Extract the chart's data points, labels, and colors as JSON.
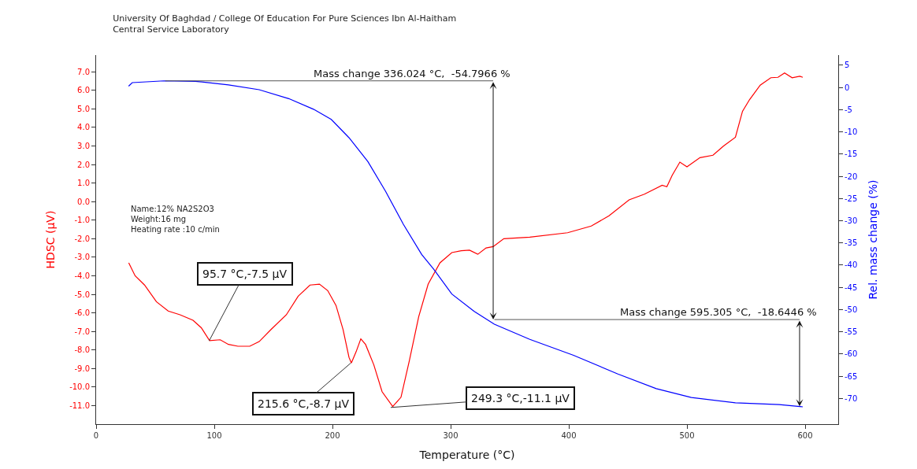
{
  "chart_data": {
    "type": "line",
    "title": "University Of Baghdad / College Of Education For Pure Sciences Ibn Al-Haitham\nCentral Service Laboratory",
    "xlabel": "Temperature (°C)",
    "ylabel": "HDSC (µV)",
    "y2label": "Rel. mass change (%)",
    "xlim": [
      0,
      628
    ],
    "xticks": [
      0,
      100,
      200,
      300,
      400,
      500,
      600
    ],
    "ylim": [
      -12,
      7.9
    ],
    "yticks": [
      {
        "value": 7,
        "label": "7.0"
      },
      {
        "value": 6,
        "label": "6.0"
      },
      {
        "value": 5,
        "label": "5.0"
      },
      {
        "value": 4,
        "label": "4.0"
      },
      {
        "value": 3,
        "label": "3.0"
      },
      {
        "value": 2,
        "label": "2.0"
      },
      {
        "value": 1,
        "label": "1.0"
      },
      {
        "value": 0,
        "label": "0.0"
      },
      {
        "value": -1,
        "label": "-1.0"
      },
      {
        "value": -2,
        "label": "-2.0"
      },
      {
        "value": -3,
        "label": "-3.0"
      },
      {
        "value": -4,
        "label": "-4.0"
      },
      {
        "value": -5,
        "label": "-5.0"
      },
      {
        "value": -6,
        "label": "-6.0"
      },
      {
        "value": -7,
        "label": "-7.0"
      },
      {
        "value": -8,
        "label": "-8.0"
      },
      {
        "value": -9,
        "label": "-9.0"
      },
      {
        "value": -10,
        "label": "-10.0"
      },
      {
        "value": -11,
        "label": "-11.0"
      }
    ],
    "y2lim": [
      -75.8,
      7.3
    ],
    "y2ticks": [
      5,
      0,
      -5,
      -10,
      -15,
      -20,
      -25,
      -30,
      -35,
      -40,
      -45,
      -50,
      -55,
      -60,
      -65,
      -70
    ],
    "marker": "none",
    "line_style": "solid",
    "series": [
      {
        "color": "#ff0000",
        "x": [
          27.6,
          33,
          41,
          51,
          61,
          71,
          82,
          89,
          96,
          105,
          112,
          120,
          130,
          138,
          148,
          161,
          171,
          181,
          189,
          196,
          203,
          209,
          214,
          216,
          220,
          224,
          228,
          235,
          242,
          251,
          258,
          265,
          273,
          281,
          291,
          301,
          309,
          316,
          323,
          330,
          336,
          345,
          367,
          399,
          419,
          434,
          451,
          464,
          479,
          483,
          487.5,
          494,
          500,
          511,
          522,
          531,
          541,
          547,
          553,
          562,
          571,
          577,
          582.6,
          589,
          595.5,
          598
        ],
        "values": [
          -3.3,
          -4.0,
          -4.5,
          -5.4,
          -5.9,
          -6.1,
          -6.4,
          -6.8,
          -7.5,
          -7.45,
          -7.7,
          -7.8,
          -7.8,
          -7.55,
          -6.9,
          -6.1,
          -5.1,
          -4.5,
          -4.45,
          -4.8,
          -5.6,
          -6.9,
          -8.4,
          -8.7,
          -8.1,
          -7.4,
          -7.7,
          -8.8,
          -10.25,
          -11.05,
          -10.55,
          -8.6,
          -6.2,
          -4.45,
          -3.3,
          -2.75,
          -2.65,
          -2.62,
          -2.84,
          -2.5,
          -2.43,
          -2.0,
          -1.92,
          -1.68,
          -1.32,
          -0.77,
          0.09,
          0.4,
          0.88,
          0.8,
          1.42,
          2.13,
          1.87,
          2.37,
          2.5,
          3.0,
          3.47,
          4.87,
          5.5,
          6.28,
          6.68,
          6.7,
          6.94,
          6.68,
          6.76,
          6.7
        ]
      },
      {
        "color": "#0000ff",
        "axis": "y2",
        "x": [
          27.5,
          30.6,
          57.4,
          84,
          112,
          138,
          163,
          184,
          199,
          214,
          230,
          245,
          260,
          275.5,
          285.7,
          301,
          320,
          337,
          367,
          404,
          441.5,
          474,
          503.7,
          541,
          578,
          598
        ],
        "values": [
          0.3,
          1.1,
          1.5,
          1.4,
          0.6,
          -0.5,
          -2.5,
          -4.9,
          -7.2,
          -11.3,
          -16.7,
          -23.4,
          -30.8,
          -37.6,
          -40.9,
          -46.5,
          -50.4,
          -53.3,
          -56.7,
          -60.3,
          -64.5,
          -67.8,
          -69.8,
          -71.0,
          -71.4,
          -71.9
        ]
      }
    ],
    "annotations": [
      "Name:12% NA2S2O3\nWeight:16 mg\nHeating rate :10 c/min",
      {
        "text": "95.7 °C,-7.5 µV",
        "x": 95.7,
        "y": -7.5
      },
      {
        "text": "215.6 °C,-8.7 µV",
        "x": 215.6,
        "y": -8.7
      },
      {
        "text": "249.3 °C,-11.1 µV",
        "x": 249.3,
        "y": -11.1
      },
      {
        "text": "Mass change 336.024 °C,  -54.7966 %",
        "x": 336.024,
        "y": -6.36
      },
      {
        "text": "Mass change 595.305 °C,  -18.6446 %",
        "x": 595.305,
        "y": -11.04
      }
    ]
  }
}
